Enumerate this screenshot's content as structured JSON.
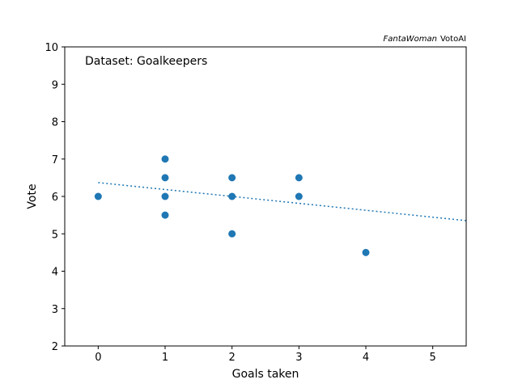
{
  "chart_data": {
    "type": "scatter",
    "xlabel": "Goals taken",
    "ylabel": "Vote",
    "xlim": [
      -0.5,
      5.5
    ],
    "ylim": [
      2,
      10
    ],
    "x_ticks": [
      0,
      1,
      2,
      3,
      4,
      5
    ],
    "y_ticks": [
      2,
      3,
      4,
      5,
      6,
      7,
      8,
      9,
      10
    ],
    "grid": false,
    "annotation": "Dataset: Goalkeepers",
    "credit_italic": "FantaWoman",
    "credit_text": "VotoAI",
    "point_color": "#1f77b4",
    "points": [
      {
        "x": 0,
        "y": 6
      },
      {
        "x": 1,
        "y": 7
      },
      {
        "x": 1,
        "y": 6.5
      },
      {
        "x": 1,
        "y": 6
      },
      {
        "x": 1,
        "y": 5.5
      },
      {
        "x": 2,
        "y": 6.5
      },
      {
        "x": 2,
        "y": 6
      },
      {
        "x": 2,
        "y": 5
      },
      {
        "x": 3,
        "y": 6.5
      },
      {
        "x": 3,
        "y": 6
      },
      {
        "x": 4,
        "y": 4.5
      }
    ],
    "trend_line": {
      "style": "dotted",
      "color": "#1f77b4",
      "intercept": 6.37,
      "slope": -0.185
    }
  }
}
